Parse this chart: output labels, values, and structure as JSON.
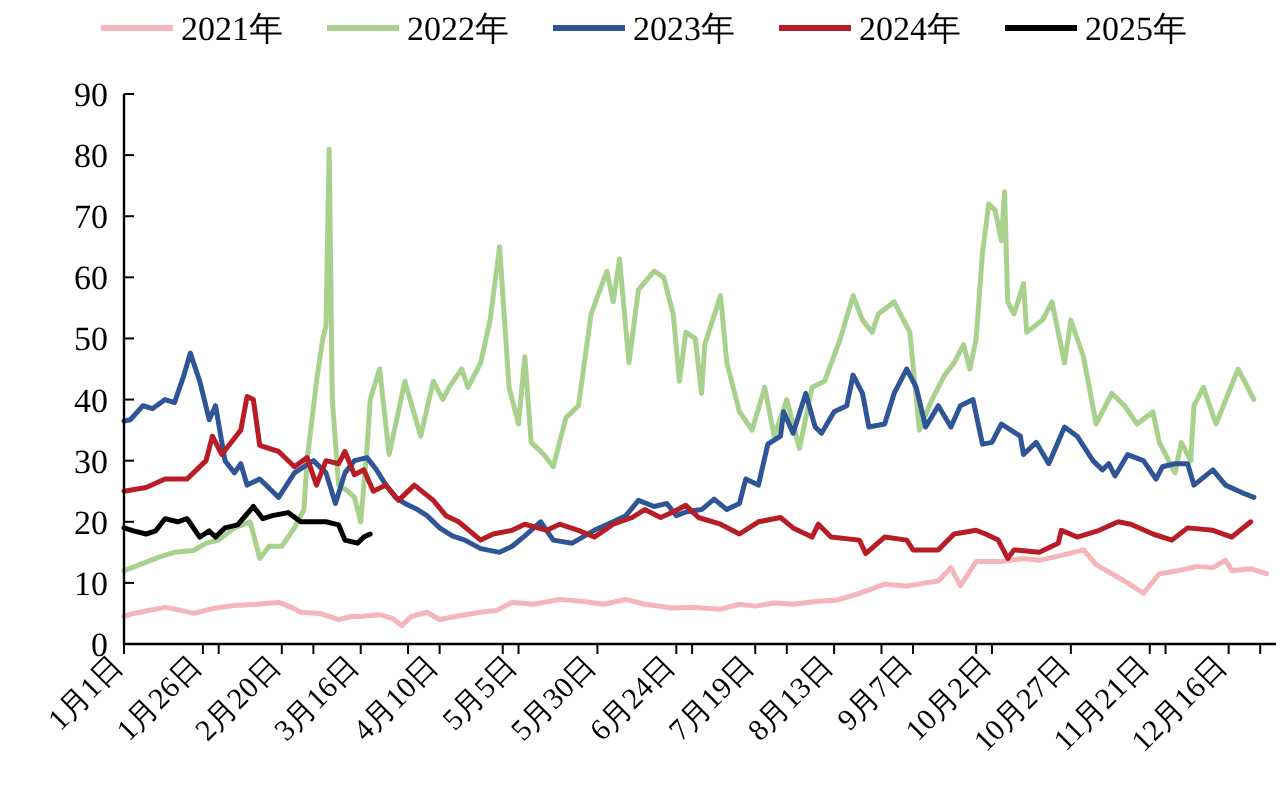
{
  "chart_data": {
    "type": "line",
    "xlim": [
      "--01-01",
      "--12-31"
    ],
    "ylim": [
      0,
      90
    ],
    "yticks": [
      0,
      10,
      20,
      30,
      40,
      50,
      60,
      70,
      80,
      90
    ],
    "xticks": [
      {
        "value": "--01-01",
        "label": "1月1日"
      },
      {
        "value": "--01-26",
        "label": "1月26日"
      },
      {
        "value": "--01-31",
        "label": null
      },
      {
        "value": "--02-20",
        "label": "2月20日"
      },
      {
        "value": "--03-01",
        "label": null
      },
      {
        "value": "--03-16",
        "label": "3月16日"
      },
      {
        "value": "--03-31",
        "label": null
      },
      {
        "value": "--04-10",
        "label": "4月10日"
      },
      {
        "value": "--04-30",
        "label": null
      },
      {
        "value": "--05-05",
        "label": "5月5日"
      },
      {
        "value": "--05-30",
        "label": "5月30日"
      },
      {
        "value": "--06-24",
        "label": "6月24日"
      },
      {
        "value": "--06-29",
        "label": null
      },
      {
        "value": "--07-19",
        "label": "7月19日"
      },
      {
        "value": "--07-29",
        "label": null
      },
      {
        "value": "--08-13",
        "label": "8月13日"
      },
      {
        "value": "--08-28",
        "label": null
      },
      {
        "value": "--09-07",
        "label": "9月7日"
      },
      {
        "value": "--09-27",
        "label": null
      },
      {
        "value": "--10-02",
        "label": "10月2日"
      },
      {
        "value": "--10-27",
        "label": "10月27日"
      },
      {
        "value": "--11-21",
        "label": "11月21日"
      },
      {
        "value": "--11-26",
        "label": null
      },
      {
        "value": "--12-16",
        "label": "12月16日"
      },
      {
        "value": "--12-26",
        "label": null
      }
    ],
    "legend": "top",
    "grid": false,
    "marker": "none",
    "line_style": "solid",
    "series": [
      {
        "name": "2021年",
        "color": "#f4b6b8",
        "x": [
          "--01-01",
          "--01-04",
          "--01-09",
          "--01-14",
          "--01-19",
          "--01-23",
          "--01-29",
          "--02-05",
          "--02-12",
          "--02-19",
          "--02-23",
          "--02-26",
          "--03-03",
          "--03-09",
          "--03-13",
          "--03-16",
          "--03-22",
          "--03-26",
          "--03-29",
          "--04-01",
          "--04-06",
          "--04-10",
          "--04-15",
          "--04-23",
          "--04-28",
          "--05-03",
          "--05-10",
          "--05-18",
          "--05-25",
          "--06-01",
          "--06-08",
          "--06-14",
          "--06-23",
          "--06-29",
          "--07-08",
          "--07-14",
          "--07-19",
          "--07-25",
          "--07-31",
          "--08-08",
          "--08-14",
          "--08-21",
          "--08-29",
          "--09-05",
          "--09-11",
          "--09-15",
          "--09-19",
          "--09-22",
          "--09-27",
          "--10-05",
          "--10-12",
          "--10-17",
          "--10-24",
          "--10-31",
          "--11-04",
          "--11-09",
          "--11-14",
          "--11-19",
          "--11-24",
          "--11-30",
          "--12-06",
          "--12-11",
          "--12-15",
          "--12-17",
          "--12-23",
          "--12-28"
        ],
        "values": [
          4.5,
          5,
          5.5,
          6,
          5.5,
          5,
          5.8,
          6.3,
          6.5,
          6.8,
          6,
          5.2,
          5,
          4,
          4.5,
          4.5,
          4.8,
          4.2,
          3,
          4.5,
          5.2,
          4,
          4.5,
          5.2,
          5.5,
          6.8,
          6.5,
          7.3,
          7,
          6.5,
          7.3,
          6.5,
          5.9,
          6,
          5.7,
          6.5,
          6.2,
          6.7,
          6.5,
          7,
          7.2,
          8.3,
          9.8,
          9.5,
          10,
          10.3,
          12.5,
          9.5,
          13.5,
          13.5,
          14,
          13.7,
          14.5,
          15.4,
          13,
          11.5,
          10,
          8.3,
          11.5,
          12,
          12.7,
          12.5,
          13.7,
          12,
          12.3,
          11.5
        ]
      },
      {
        "name": "2022年",
        "color": "#a9d18e",
        "x": [
          "--01-01",
          "--01-06",
          "--01-12",
          "--01-17",
          "--01-23",
          "--01-27",
          "--01-31",
          "--02-05",
          "--02-10",
          "--02-13",
          "--02-16",
          "--02-20",
          "--02-24",
          "--02-27",
          "--02-28",
          "--03-02",
          "--03-04",
          "--03-05",
          "--03-06",
          "--03-07",
          "--03-09",
          "--03-12",
          "--03-14",
          "--03-16",
          "--03-18",
          "--03-19",
          "--03-22",
          "--03-25",
          "--03-30",
          "--04-04",
          "--04-08",
          "--04-11",
          "--04-13",
          "--04-17",
          "--04-19",
          "--04-23",
          "--04-26",
          "--04-29",
          "--05-02",
          "--05-05",
          "--05-07",
          "--05-09",
          "--05-13",
          "--05-16",
          "--05-20",
          "--05-24",
          "--05-28",
          "--06-02",
          "--06-04",
          "--06-06",
          "--06-09",
          "--06-12",
          "--06-17",
          "--06-20",
          "--06-23",
          "--06-25",
          "--06-27",
          "--06-30",
          "--07-02",
          "--07-03",
          "--07-08",
          "--07-10",
          "--07-14",
          "--07-18",
          "--07-22",
          "--07-25",
          "--07-29",
          "--08-02",
          "--08-06",
          "--08-10",
          "--08-15",
          "--08-19",
          "--08-22",
          "--08-25",
          "--08-27",
          "--09-01",
          "--09-06",
          "--09-09",
          "--09-13",
          "--09-17",
          "--09-20",
          "--09-23",
          "--09-25",
          "--09-27",
          "--09-29",
          "--10-01",
          "--10-03",
          "--10-05",
          "--10-06",
          "--10-07",
          "--10-09",
          "--10-12",
          "--10-13",
          "--10-18",
          "--10-21",
          "--10-25",
          "--10-27",
          "--10-31",
          "--11-04",
          "--11-09",
          "--11-13",
          "--11-17",
          "--11-22",
          "--11-24",
          "--11-29",
          "--12-01",
          "--12-04",
          "--12-05",
          "--12-08",
          "--12-12",
          "--12-19",
          "--12-21",
          "--12-24"
        ],
        "values": [
          12,
          13,
          14.2,
          15,
          15.3,
          16.5,
          17,
          19,
          20,
          14,
          16,
          16,
          19,
          22,
          30,
          43,
          50,
          52,
          81,
          40,
          26,
          25,
          24,
          20,
          32,
          40,
          45,
          31,
          43,
          34,
          43,
          40,
          42,
          45,
          42,
          46,
          53,
          65,
          42,
          36,
          47,
          33,
          31,
          29,
          37,
          39,
          54,
          61,
          56,
          63,
          46,
          58,
          61,
          60,
          54,
          43,
          51,
          50,
          41,
          49,
          57,
          46,
          38,
          35,
          42,
          34,
          40,
          32,
          42,
          43,
          50,
          57,
          53,
          51,
          54,
          56,
          51,
          35,
          40,
          44,
          46,
          49,
          45,
          50,
          64,
          72,
          71,
          66,
          74,
          56,
          54,
          59,
          51,
          53,
          56,
          46,
          53,
          47,
          36,
          41,
          39,
          36,
          38,
          33,
          28,
          33,
          30,
          39,
          42,
          36,
          45,
          43,
          40
        ]
      },
      {
        "name": "2023年",
        "color": "#2f5597",
        "x": [
          "--01-01",
          "--01-03",
          "--01-07",
          "--01-10",
          "--01-14",
          "--01-17",
          "--01-20",
          "--01-22",
          "--01-25",
          "--01-28",
          "--01-30",
          "--02-02",
          "--02-05",
          "--02-07",
          "--02-09",
          "--02-13",
          "--02-17",
          "--02-19",
          "--02-24",
          "--03-01",
          "--03-05",
          "--03-08",
          "--03-11",
          "--03-14",
          "--03-18",
          "--03-21",
          "--03-24",
          "--03-27",
          "--03-30",
          "--04-03",
          "--04-06",
          "--04-10",
          "--04-14",
          "--04-18",
          "--04-23",
          "--04-29",
          "--05-03",
          "--05-07",
          "--05-12",
          "--05-16",
          "--05-22",
          "--05-29",
          "--06-04",
          "--06-08",
          "--06-12",
          "--06-17",
          "--06-21",
          "--06-24",
          "--06-27",
          "--07-02",
          "--07-06",
          "--07-10",
          "--07-14",
          "--07-16",
          "--07-20",
          "--07-23",
          "--07-27",
          "--07-28",
          "--07-31",
          "--08-04",
          "--08-07",
          "--08-09",
          "--08-13",
          "--08-17",
          "--08-19",
          "--08-22",
          "--08-24",
          "--08-29",
          "--09-01",
          "--09-05",
          "--09-08",
          "--09-11",
          "--09-15",
          "--09-19",
          "--09-22",
          "--09-26",
          "--09-29",
          "--10-02",
          "--10-05",
          "--10-11",
          "--10-12",
          "--10-16",
          "--10-20",
          "--10-25",
          "--10-29",
          "--11-03",
          "--11-06",
          "--11-08",
          "--11-10",
          "--11-14",
          "--11-19",
          "--11-23",
          "--11-25",
          "--11-29",
          "--12-03",
          "--12-05",
          "--12-11",
          "--12-15",
          "--12-21",
          "--12-24"
        ],
        "values": [
          36.5,
          36.7,
          39,
          38.5,
          40,
          39.5,
          44,
          47.6,
          43,
          36.7,
          39,
          30,
          28,
          29.5,
          26,
          27,
          25,
          24,
          28,
          30,
          28,
          23,
          28,
          30,
          30.5,
          28.5,
          26,
          24,
          23,
          22,
          21,
          19,
          17.7,
          17,
          15.6,
          15,
          16,
          17.7,
          20,
          17,
          16.5,
          18.6,
          20,
          21,
          23.5,
          22.5,
          23,
          21,
          21.6,
          22,
          23.7,
          22,
          23,
          27,
          26,
          32.7,
          34,
          38,
          34.5,
          41,
          35.5,
          34.5,
          38,
          39,
          44,
          41,
          35.5,
          36,
          41,
          45,
          42,
          35.5,
          39,
          35.5,
          39,
          40,
          32.7,
          33,
          36,
          34,
          31,
          33,
          29.5,
          35.5,
          34,
          30,
          28.5,
          29.5,
          27.5,
          31,
          30,
          27,
          29,
          29.5,
          29.5,
          26,
          28.5,
          26,
          24.6,
          24
        ]
      },
      {
        "name": "2024年",
        "color": "#b81d25",
        "x": [
          "--01-01",
          "--01-08",
          "--01-14",
          "--01-21",
          "--01-23",
          "--01-27",
          "--01-29",
          "--02-01",
          "--02-04",
          "--02-07",
          "--02-09",
          "--02-11",
          "--02-13",
          "--02-19",
          "--02-24",
          "--02-28",
          "--03-02",
          "--03-05",
          "--03-09",
          "--03-11",
          "--03-14",
          "--03-17",
          "--03-20",
          "--03-24",
          "--03-28",
          "--04-02",
          "--04-08",
          "--04-12",
          "--04-16",
          "--04-23",
          "--04-27",
          "--05-03",
          "--05-07",
          "--05-14",
          "--05-18",
          "--05-24",
          "--05-29",
          "--06-04",
          "--06-10",
          "--06-14",
          "--06-19",
          "--06-23",
          "--06-27",
          "--07-01",
          "--07-08",
          "--07-14",
          "--07-20",
          "--07-27",
          "--07-31",
          "--08-06",
          "--08-08",
          "--08-12",
          "--08-21",
          "--08-23",
          "--08-29",
          "--09-05",
          "--09-07",
          "--09-15",
          "--09-20",
          "--09-27",
          "--09-30",
          "--10-04",
          "--10-07",
          "--10-09",
          "--10-17",
          "--10-23",
          "--10-24",
          "--10-29",
          "--11-05",
          "--11-11",
          "--11-15",
          "--11-22",
          "--11-28",
          "--12-03",
          "--12-11",
          "--12-17",
          "--12-23"
        ],
        "values": [
          25,
          25.6,
          27,
          27,
          28,
          30,
          34,
          31,
          33,
          35,
          40.5,
          40,
          32.5,
          31.5,
          29,
          30.5,
          26,
          30,
          29.5,
          31.5,
          27.7,
          28.5,
          25,
          26,
          23.5,
          26,
          23.5,
          21,
          20,
          17,
          18,
          18.6,
          19.6,
          18.6,
          19.6,
          18.6,
          17.5,
          19.6,
          20.7,
          22,
          20.7,
          21.6,
          22.7,
          20.7,
          19.6,
          18,
          20,
          20.7,
          19,
          17.5,
          19.6,
          17.5,
          17,
          14.8,
          17.5,
          17,
          15.4,
          15.4,
          18,
          18.6,
          18,
          17,
          14,
          15.4,
          15,
          16.5,
          18.6,
          17.5,
          18.6,
          20,
          19.6,
          18,
          17,
          19,
          18.6,
          17.5,
          20
        ]
      },
      {
        "name": "2025年",
        "color": "#000000",
        "x": [
          "--01-01",
          "--01-04",
          "--01-08",
          "--01-11",
          "--01-14",
          "--01-18",
          "--01-21",
          "--01-25",
          "--01-28",
          "--01-30",
          "--02-02",
          "--02-06",
          "--02-11",
          "--02-14",
          "--02-17",
          "--02-22",
          "--02-26",
          "--03-01",
          "--03-05",
          "--03-09",
          "--03-11",
          "--03-15",
          "--03-17",
          "--03-19"
        ],
        "values": [
          19,
          18.5,
          18,
          18.5,
          20.5,
          20,
          20.5,
          17.5,
          18.5,
          17.5,
          19,
          19.5,
          22.5,
          20.5,
          21,
          21.5,
          20,
          20,
          20,
          19.5,
          17,
          16.5,
          17.5,
          18
        ]
      }
    ]
  }
}
